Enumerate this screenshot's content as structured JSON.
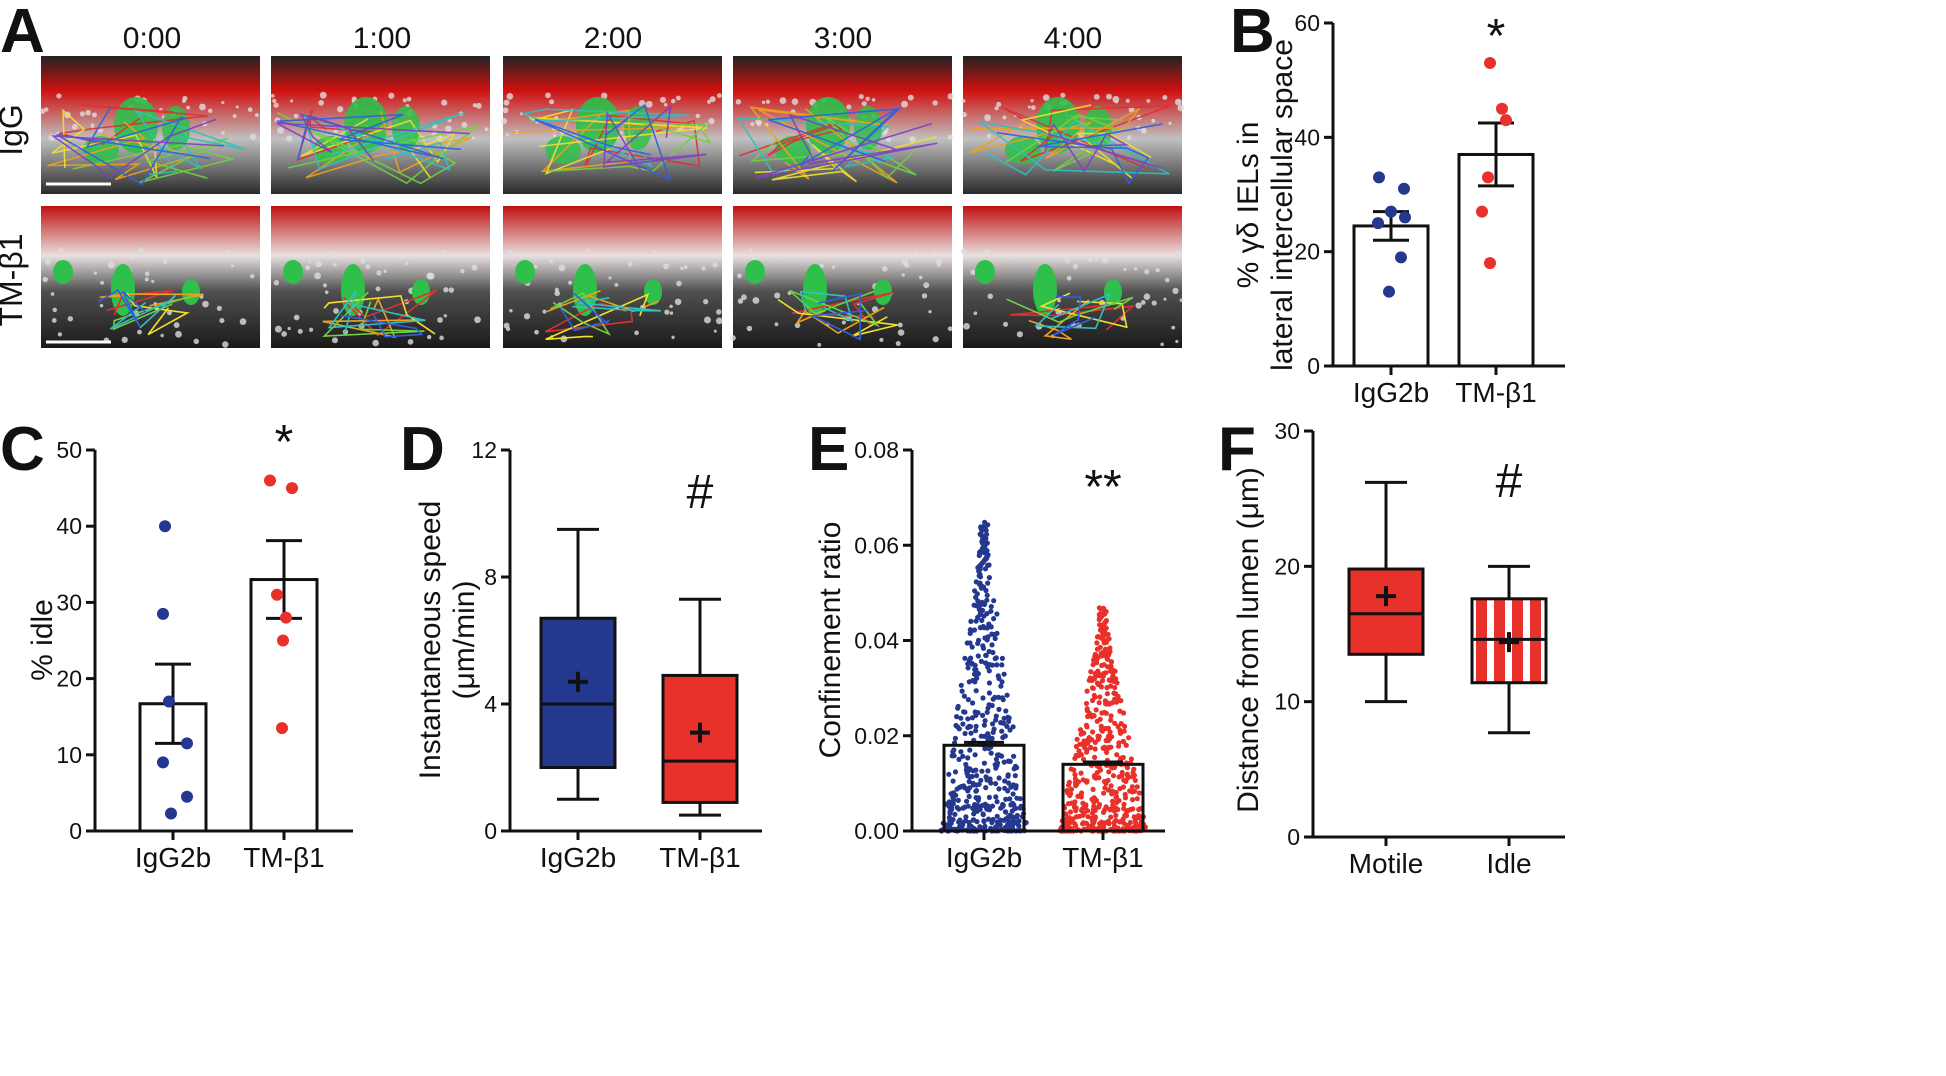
{
  "colors": {
    "blue": "#25388f",
    "red": "#e8312a",
    "black": "#111111"
  },
  "panel_a": {
    "letter": "A",
    "times": [
      "0:00",
      "1:00",
      "2:00",
      "3:00",
      "4:00"
    ],
    "rows": [
      "IgG",
      "TM-β1"
    ]
  },
  "chart_data": [
    {
      "panel": "B",
      "type": "bar",
      "ylabel_line1": "% γδ IELs in",
      "ylabel_line2": "lateral intercellular space",
      "categories": [
        "IgG2b",
        "TM-β1"
      ],
      "means": [
        24.5,
        37
      ],
      "sem": [
        2.5,
        5.5
      ],
      "points": [
        [
          33,
          31,
          27,
          26,
          25,
          19,
          13
        ],
        [
          53,
          45,
          43,
          33,
          27,
          18
        ]
      ],
      "yticks": [
        0,
        20,
        40,
        60
      ],
      "ylim": [
        0,
        60
      ],
      "significance": "*"
    },
    {
      "panel": "C",
      "type": "bar",
      "ylabel": "% idle",
      "categories": [
        "IgG2b",
        "TM-β1"
      ],
      "means": [
        16.7,
        33
      ],
      "sem": [
        5.2,
        5.1
      ],
      "points": [
        [
          40,
          28.5,
          17,
          11.5,
          9,
          4.5,
          2.3
        ],
        [
          46,
          45,
          31,
          28,
          25,
          13.5
        ]
      ],
      "yticks": [
        0,
        10,
        20,
        30,
        40,
        50
      ],
      "ylim": [
        0,
        50
      ],
      "significance": "*"
    },
    {
      "panel": "D",
      "type": "box",
      "ylabel_line1": "Instantaneous speed",
      "ylabel_line2": "(μm/min)",
      "categories": [
        "IgG2b",
        "TM-β1"
      ],
      "boxes": [
        {
          "min": 1.0,
          "q1": 2.0,
          "median": 4.0,
          "q3": 6.7,
          "max": 9.5,
          "mean": 4.7,
          "fill": "solid-blue"
        },
        {
          "min": 0.5,
          "q1": 0.9,
          "median": 2.2,
          "q3": 4.9,
          "max": 7.3,
          "mean": 3.1,
          "fill": "solid-red"
        }
      ],
      "yticks": [
        0,
        4,
        8,
        12
      ],
      "ylim": [
        0,
        12
      ],
      "significance": "#"
    },
    {
      "panel": "E",
      "type": "scatter",
      "ylabel": "Confinement ratio",
      "categories": [
        "IgG2b",
        "TM-β1"
      ],
      "means": [
        0.018,
        0.014
      ],
      "sem": [
        0.0006,
        0.0005
      ],
      "max_points": [
        0.065,
        0.047
      ],
      "yticks": [
        "0.00",
        "0.02",
        "0.04",
        "0.06",
        "0.08"
      ],
      "ylim": [
        0,
        0.08
      ],
      "significance": "**"
    },
    {
      "panel": "F",
      "type": "box",
      "ylabel": "Distance from lumen (μm)",
      "categories": [
        "Motile",
        "Idle"
      ],
      "boxes": [
        {
          "min": 10.0,
          "q1": 13.5,
          "median": 16.5,
          "q3": 19.8,
          "max": 26.2,
          "mean": 17.8,
          "fill": "solid-red"
        },
        {
          "min": 7.7,
          "q1": 11.4,
          "median": 14.6,
          "q3": 17.6,
          "max": 20.0,
          "mean": 14.4,
          "fill": "striped-red"
        }
      ],
      "yticks": [
        0,
        10,
        20,
        30
      ],
      "ylim": [
        0,
        30
      ],
      "significance": "#"
    }
  ]
}
